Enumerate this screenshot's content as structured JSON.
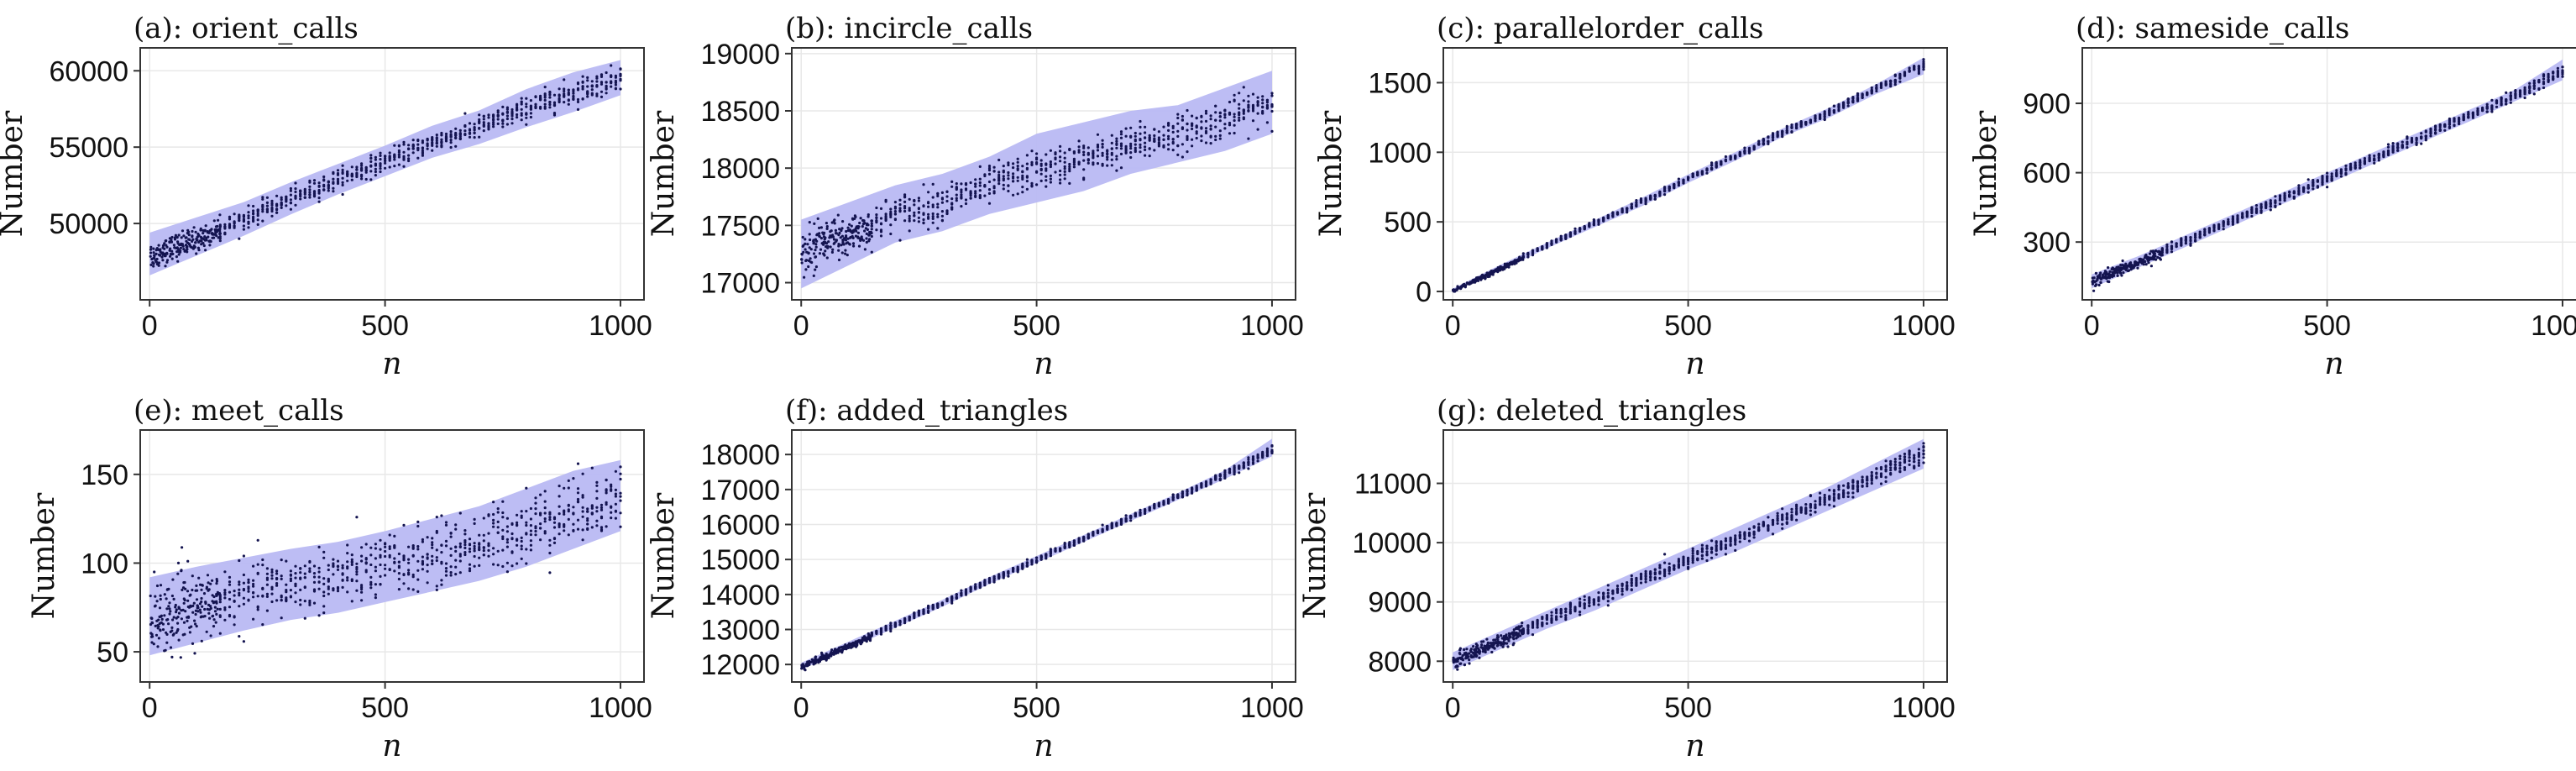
{
  "chart_data": [
    {
      "type": "scatter",
      "title": "(a): orient_calls",
      "xlabel": "n",
      "ylabel": "Number",
      "xlim": [
        -20,
        1050
      ],
      "ylim": [
        45000,
        61500
      ],
      "xticks": [
        0,
        500,
        1000
      ],
      "yticks": [
        50000,
        55000,
        60000
      ],
      "grid": true,
      "series": [
        {
          "kind": "band",
          "x": [
            0,
            100,
            200,
            300,
            400,
            500,
            600,
            700,
            800,
            900,
            1000
          ],
          "lower": [
            46600,
            47900,
            49200,
            50600,
            51900,
            53100,
            54300,
            55200,
            56300,
            57300,
            58400
          ],
          "upper": [
            49400,
            50400,
            51400,
            52700,
            53900,
            55100,
            56400,
            57400,
            58800,
            59900,
            60700
          ]
        },
        {
          "kind": "points",
          "x": [
            0,
            100,
            200,
            300,
            400,
            500,
            600,
            700,
            800,
            900,
            1000
          ],
          "mean": [
            47900,
            49000,
            50300,
            51600,
            52900,
            54100,
            55300,
            56300,
            57500,
            58600,
            59600
          ],
          "spread": [
            800,
            700,
            600,
            600,
            600,
            600,
            600,
            700,
            700,
            800,
            700
          ]
        }
      ]
    },
    {
      "type": "scatter",
      "title": "(b): incircle_calls",
      "xlabel": "n",
      "ylabel": "Number",
      "xlim": [
        -20,
        1050
      ],
      "ylim": [
        16850,
        19050
      ],
      "xticks": [
        0,
        500,
        1000
      ],
      "yticks": [
        17000,
        17500,
        18000,
        18500,
        19000
      ],
      "grid": true,
      "series": [
        {
          "kind": "band",
          "x": [
            0,
            100,
            200,
            300,
            400,
            500,
            600,
            700,
            800,
            900,
            1000
          ],
          "lower": [
            16950,
            17150,
            17350,
            17450,
            17600,
            17700,
            17800,
            17950,
            18050,
            18150,
            18300
          ],
          "upper": [
            17550,
            17700,
            17850,
            17950,
            18100,
            18300,
            18400,
            18500,
            18550,
            18700,
            18850
          ]
        },
        {
          "kind": "points",
          "x": [
            0,
            100,
            200,
            300,
            400,
            500,
            600,
            700,
            800,
            900,
            1000
          ],
          "mean": [
            17250,
            17420,
            17600,
            17700,
            17850,
            17980,
            18080,
            18200,
            18300,
            18430,
            18580
          ],
          "spread": [
            180,
            160,
            150,
            150,
            150,
            150,
            150,
            150,
            150,
            150,
            150
          ]
        }
      ]
    },
    {
      "type": "scatter",
      "title": "(c): parallelorder_calls",
      "xlabel": "n",
      "ylabel": "Number",
      "xlim": [
        -20,
        1050
      ],
      "ylim": [
        -60,
        1750
      ],
      "xticks": [
        0,
        500,
        1000
      ],
      "yticks": [
        0,
        500,
        1000,
        1500
      ],
      "grid": true,
      "series": [
        {
          "kind": "band",
          "x": [
            0,
            100,
            200,
            300,
            400,
            500,
            600,
            700,
            800,
            900,
            1000
          ],
          "lower": [
            0,
            150,
            310,
            460,
            610,
            780,
            940,
            1110,
            1250,
            1420,
            1560
          ],
          "upper": [
            20,
            190,
            350,
            510,
            670,
            840,
            1000,
            1170,
            1320,
            1490,
            1680
          ]
        },
        {
          "kind": "points",
          "x": [
            0,
            100,
            200,
            300,
            400,
            500,
            600,
            700,
            800,
            900,
            1000
          ],
          "mean": [
            10,
            170,
            330,
            490,
            640,
            810,
            970,
            1140,
            1290,
            1460,
            1620
          ],
          "spread": [
            10,
            15,
            15,
            18,
            20,
            20,
            22,
            22,
            25,
            25,
            30
          ]
        }
      ]
    },
    {
      "type": "scatter",
      "title": "(d): sameside_calls",
      "xlabel": "n",
      "ylabel": "Number",
      "xlim": [
        -20,
        1050
      ],
      "ylim": [
        50,
        1140
      ],
      "xticks": [
        0,
        500,
        1000
      ],
      "yticks": [
        300,
        600,
        900
      ],
      "grid": true,
      "series": [
        {
          "kind": "band",
          "x": [
            0,
            100,
            200,
            300,
            400,
            500,
            600,
            700,
            800,
            900,
            1000
          ],
          "lower": [
            100,
            190,
            280,
            370,
            460,
            550,
            640,
            730,
            820,
            910,
            1000
          ],
          "upper": [
            160,
            240,
            330,
            420,
            510,
            600,
            690,
            780,
            870,
            960,
            1090
          ]
        },
        {
          "kind": "points",
          "x": [
            0,
            100,
            200,
            300,
            400,
            500,
            600,
            700,
            800,
            900,
            1000
          ],
          "mean": [
            130,
            215,
            305,
            395,
            485,
            575,
            665,
            755,
            845,
            935,
            1040
          ],
          "spread": [
            25,
            20,
            20,
            20,
            20,
            20,
            20,
            20,
            20,
            20,
            25
          ]
        }
      ]
    },
    {
      "type": "scatter",
      "title": "(e): meet_calls",
      "xlabel": "n",
      "ylabel": "Number",
      "xlim": [
        -20,
        1050
      ],
      "ylim": [
        33,
        175
      ],
      "xticks": [
        0,
        500,
        1000
      ],
      "yticks": [
        50,
        100,
        150
      ],
      "grid": true,
      "series": [
        {
          "kind": "band",
          "x": [
            0,
            100,
            200,
            300,
            400,
            500,
            600,
            700,
            800,
            900,
            1000
          ],
          "lower": [
            48,
            55,
            62,
            68,
            72,
            78,
            84,
            90,
            98,
            108,
            118
          ],
          "upper": [
            92,
            98,
            103,
            108,
            112,
            118,
            125,
            132,
            142,
            152,
            158
          ]
        },
        {
          "kind": "points",
          "x": [
            0,
            100,
            200,
            300,
            400,
            500,
            600,
            700,
            800,
            900,
            1000
          ],
          "mean": [
            68,
            75,
            82,
            88,
            92,
            98,
            104,
            111,
            120,
            130,
            138
          ],
          "spread": [
            18,
            17,
            16,
            16,
            16,
            16,
            16,
            17,
            18,
            18,
            16
          ]
        }
      ]
    },
    {
      "type": "scatter",
      "title": "(f): added_triangles",
      "xlabel": "n",
      "ylabel": "Number",
      "xlim": [
        -20,
        1050
      ],
      "ylim": [
        11500,
        18700
      ],
      "xticks": [
        0,
        500,
        1000
      ],
      "yticks": [
        12000,
        13000,
        14000,
        15000,
        16000,
        17000,
        18000
      ],
      "grid": true,
      "series": [
        {
          "kind": "band",
          "x": [
            0,
            100,
            200,
            300,
            400,
            500,
            600,
            700,
            800,
            900,
            1000
          ],
          "lower": [
            11850,
            12450,
            13050,
            13650,
            14300,
            14900,
            15500,
            16100,
            16700,
            17300,
            17950
          ],
          "upper": [
            12050,
            12650,
            13250,
            13850,
            14500,
            15100,
            15700,
            16300,
            16900,
            17550,
            18450
          ]
        },
        {
          "kind": "points",
          "x": [
            0,
            100,
            200,
            300,
            400,
            500,
            600,
            700,
            800,
            900,
            1000
          ],
          "mean": [
            11950,
            12550,
            13150,
            13750,
            14400,
            15000,
            15600,
            16200,
            16800,
            17420,
            18150
          ],
          "spread": [
            80,
            80,
            80,
            80,
            80,
            80,
            80,
            80,
            90,
            100,
            150
          ]
        }
      ]
    },
    {
      "type": "scatter",
      "title": "(g): deleted_triangles",
      "xlabel": "n",
      "ylabel": "Number",
      "xlim": [
        -20,
        1050
      ],
      "ylim": [
        7650,
        11900
      ],
      "xticks": [
        0,
        500,
        1000
      ],
      "yticks": [
        8000,
        9000,
        10000,
        11000
      ],
      "grid": true,
      "series": [
        {
          "kind": "band",
          "x": [
            0,
            100,
            200,
            300,
            400,
            500,
            600,
            700,
            800,
            900,
            1000
          ],
          "lower": [
            7850,
            8200,
            8550,
            8850,
            9200,
            9550,
            9850,
            10200,
            10550,
            10900,
            11250
          ],
          "upper": [
            8150,
            8500,
            8850,
            9200,
            9550,
            9900,
            10250,
            10600,
            10950,
            11350,
            11750
          ]
        },
        {
          "kind": "points",
          "x": [
            0,
            100,
            200,
            300,
            400,
            500,
            600,
            700,
            800,
            900,
            1000
          ],
          "mean": [
            8000,
            8350,
            8700,
            9020,
            9370,
            9720,
            10050,
            10400,
            10750,
            11120,
            11500
          ],
          "spread": [
            110,
            110,
            110,
            110,
            110,
            110,
            120,
            120,
            130,
            140,
            160
          ]
        }
      ]
    }
  ]
}
